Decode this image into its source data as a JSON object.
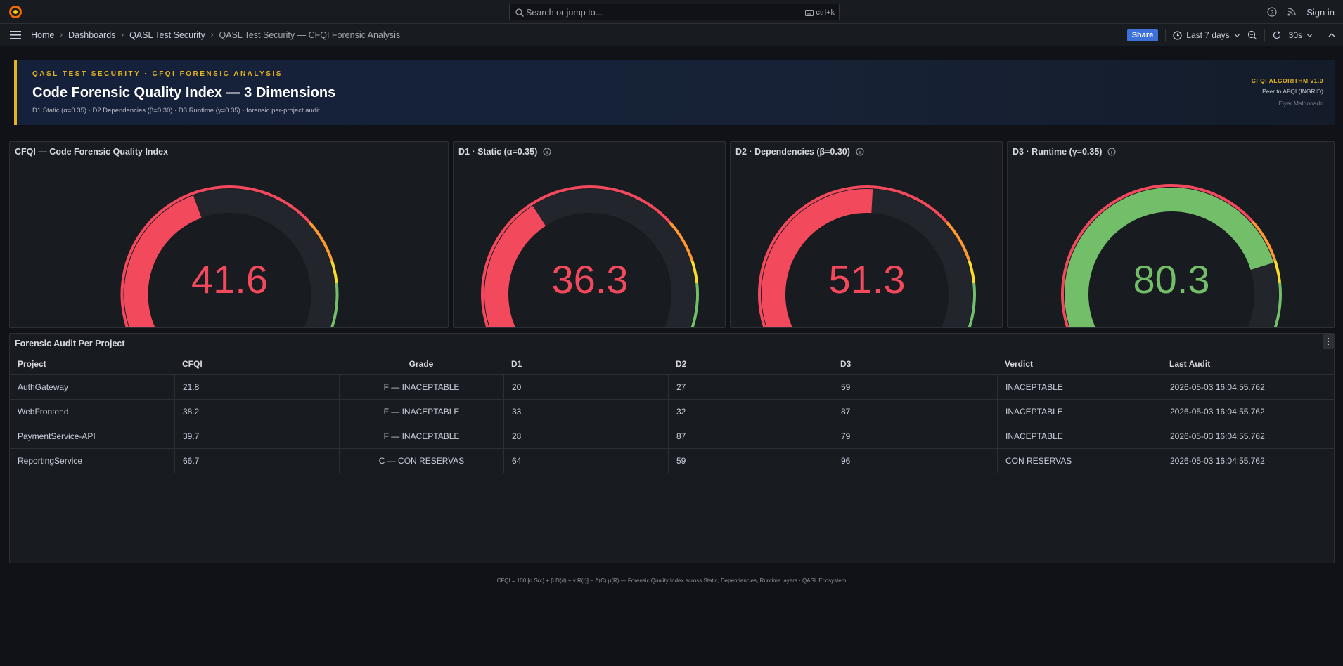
{
  "topbar": {
    "search_placeholder": "Search or jump to...",
    "search_shortcut": "ctrl+k",
    "signin_label": "Sign in"
  },
  "breadcrumb": {
    "items": [
      "Home",
      "Dashboards",
      "QASL Test Security",
      "QASL Test Security — CFQI Forensic Analysis"
    ]
  },
  "toolbar": {
    "share_label": "Share",
    "time_range": "Last 7 days",
    "refresh_interval": "30s"
  },
  "banner": {
    "kicker": "QASL TEST SECURITY · CFQI FORENSIC ANALYSIS",
    "title": "Code Forensic Quality Index — 3 Dimensions",
    "subtitle": "D1 Static (α=0.35) · D2 Dependencies (β=0.30) · D3 Runtime (γ=0.35) · forensic per-project audit",
    "algorithm": "CFQI ALGORITHM v1.0",
    "peer": "Peer to AFQI (INGRID)",
    "author": "Elyer Maldonado"
  },
  "gauges": [
    {
      "title": "CFQI — Code Forensic Quality Index",
      "value": 41.6,
      "display": "41.6",
      "color": "#f2495c",
      "has_info": false
    },
    {
      "title": "D1 · Static (α=0.35)",
      "value": 36.3,
      "display": "36.3",
      "color": "#f2495c",
      "has_info": true
    },
    {
      "title": "D2 · Dependencies (β=0.30)",
      "value": 51.3,
      "display": "51.3",
      "color": "#f2495c",
      "has_info": true
    },
    {
      "title": "D3 · Runtime (γ=0.35)",
      "value": 80.3,
      "display": "80.3",
      "color": "#73bf69",
      "has_info": true
    }
  ],
  "thresholds": {
    "colors": [
      "#f2495c",
      "#ff9830",
      "#fade2a",
      "#73bf69"
    ]
  },
  "audit_table": {
    "title": "Forensic Audit Per Project",
    "columns": [
      "Project",
      "CFQI",
      "Grade",
      "D1",
      "D2",
      "D3",
      "Verdict",
      "Last Audit"
    ],
    "rows": [
      [
        "AuthGateway",
        "21.8",
        "F — INACEPTABLE",
        "20",
        "27",
        "59",
        "INACEPTABLE",
        "2026-05-03 16:04:55.762"
      ],
      [
        "WebFrontend",
        "38.2",
        "F — INACEPTABLE",
        "33",
        "32",
        "87",
        "INACEPTABLE",
        "2026-05-03 16:04:55.762"
      ],
      [
        "PaymentService-API",
        "39.7",
        "F — INACEPTABLE",
        "28",
        "87",
        "79",
        "INACEPTABLE",
        "2026-05-03 16:04:55.762"
      ],
      [
        "ReportingService",
        "66.7",
        "C — CON RESERVAS",
        "64",
        "59",
        "96",
        "CON RESERVAS",
        "2026-05-03 16:04:55.762"
      ]
    ]
  },
  "footer": {
    "formula": "CFQI = 100 [α S(c) + β D(d) + γ R(r)] − Λ(C) μ(R) — Forensic Quality Index across Static, Dependencies, Runtime layers · QASL Ecosystem"
  }
}
